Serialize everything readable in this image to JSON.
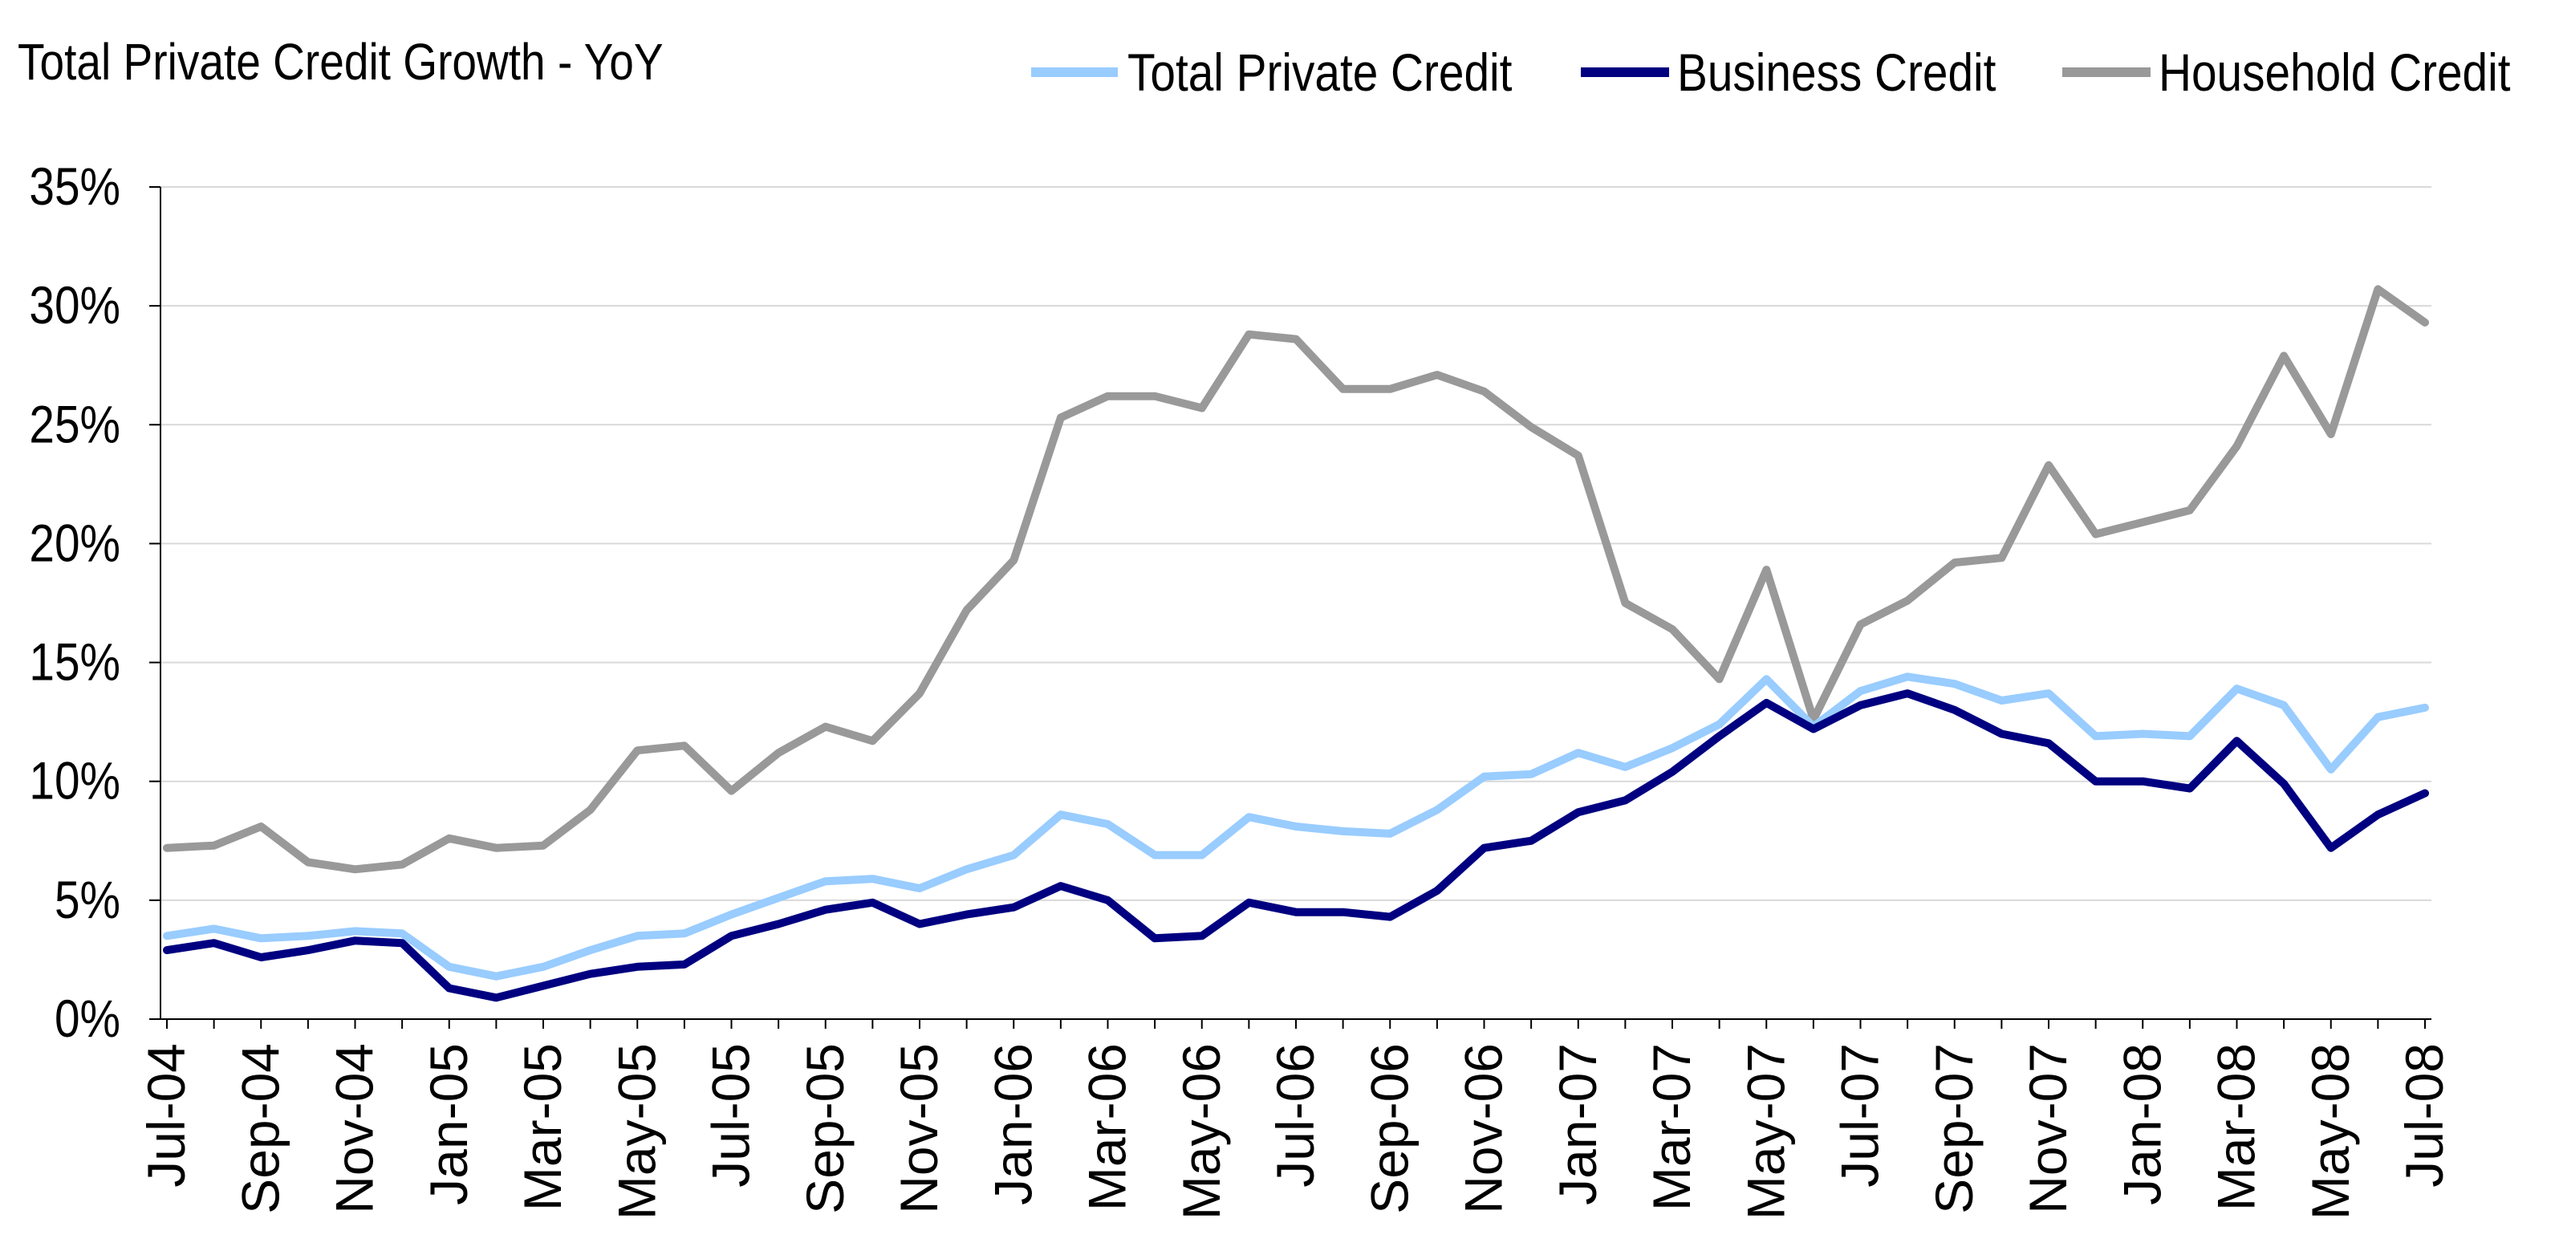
{
  "chart_data": {
    "type": "line",
    "title": "Total Private Credit Growth - YoY",
    "xlabel": "",
    "ylabel": "",
    "ylim": [
      0,
      35
    ],
    "yticks": [
      "0%",
      "5%",
      "10%",
      "15%",
      "20%",
      "25%",
      "30%",
      "35%"
    ],
    "grid": "horizontal",
    "legend_position": "top-right",
    "x": [
      "Jul-04",
      "Aug-04",
      "Sep-04",
      "Oct-04",
      "Nov-04",
      "Dec-04",
      "Jan-05",
      "Feb-05",
      "Mar-05",
      "Apr-05",
      "May-05",
      "Jun-05",
      "Jul-05",
      "Aug-05",
      "Sep-05",
      "Oct-05",
      "Nov-05",
      "Dec-05",
      "Jan-06",
      "Feb-06",
      "Mar-06",
      "Apr-06",
      "May-06",
      "Jun-06",
      "Jul-06",
      "Aug-06",
      "Sep-06",
      "Oct-06",
      "Nov-06",
      "Dec-06",
      "Jan-07",
      "Feb-07",
      "Mar-07",
      "Apr-07",
      "May-07",
      "Jun-07",
      "Jul-07",
      "Aug-07",
      "Sep-07",
      "Oct-07",
      "Nov-07",
      "Dec-07",
      "Jan-08",
      "Feb-08",
      "Mar-08",
      "Apr-08",
      "May-08",
      "Jun-08",
      "Jul-08"
    ],
    "xtick_labels": [
      "Jul-04",
      "Sep-04",
      "Nov-04",
      "Jan-05",
      "Mar-05",
      "May-05",
      "Jul-05",
      "Sep-05",
      "Nov-05",
      "Jan-06",
      "Mar-06",
      "May-06",
      "Jul-06",
      "Sep-06",
      "Nov-06",
      "Jan-07",
      "Mar-07",
      "May-07",
      "Jul-07",
      "Sep-07",
      "Nov-07",
      "Jan-08",
      "Mar-08",
      "May-08",
      "Jul-08"
    ],
    "series": [
      {
        "name": "Total Private Credit",
        "color": "#99ccff",
        "values": [
          3.5,
          3.8,
          3.4,
          3.5,
          3.7,
          3.6,
          2.2,
          1.8,
          2.2,
          2.9,
          3.5,
          3.6,
          4.4,
          5.1,
          5.8,
          5.9,
          5.5,
          6.3,
          6.9,
          8.6,
          8.2,
          6.9,
          6.9,
          8.5,
          8.1,
          7.9,
          7.8,
          8.8,
          10.2,
          10.3,
          11.2,
          10.6,
          11.4,
          12.4,
          14.3,
          12.3,
          13.8,
          14.4,
          14.1,
          13.4,
          13.7,
          11.9,
          12.0,
          11.9,
          13.9,
          13.2,
          10.5,
          12.7,
          13.1
        ]
      },
      {
        "name": "Business Credit",
        "color": "#000080",
        "values": [
          2.9,
          3.2,
          2.6,
          2.9,
          3.3,
          3.2,
          1.3,
          0.9,
          1.4,
          1.9,
          2.2,
          2.3,
          3.5,
          4.0,
          4.6,
          4.9,
          4.0,
          4.4,
          4.7,
          5.6,
          5.0,
          3.4,
          3.5,
          4.9,
          4.5,
          4.5,
          4.3,
          5.4,
          7.2,
          7.5,
          8.7,
          9.2,
          10.4,
          11.9,
          13.3,
          12.2,
          13.2,
          13.7,
          13.0,
          12.0,
          11.6,
          10.0,
          10.0,
          9.7,
          11.7,
          9.9,
          7.2,
          8.6,
          9.5
        ]
      },
      {
        "name": "Household Credit",
        "color": "#999999",
        "values": [
          7.2,
          7.3,
          8.1,
          6.6,
          6.3,
          6.5,
          7.6,
          7.2,
          7.3,
          8.8,
          11.3,
          11.5,
          9.6,
          11.2,
          12.3,
          11.7,
          13.7,
          17.2,
          19.3,
          25.3,
          26.2,
          26.2,
          25.7,
          28.8,
          28.6,
          26.5,
          26.5,
          27.1,
          26.4,
          24.9,
          23.7,
          17.5,
          16.4,
          14.3,
          18.9,
          12.6,
          16.6,
          17.6,
          19.2,
          19.4,
          23.3,
          20.4,
          20.9,
          21.4,
          24.1,
          27.9,
          24.6,
          30.7,
          29.3
        ]
      }
    ]
  }
}
